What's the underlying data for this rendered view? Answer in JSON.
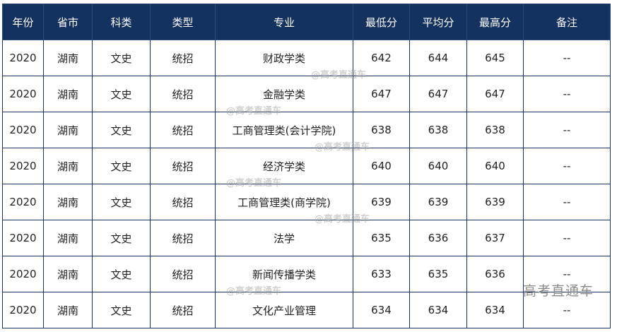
{
  "headers": [
    "年份",
    "省市",
    "科类",
    "类型",
    "专业",
    "最低分",
    "平均分",
    "最高分",
    "备注"
  ],
  "rows": [
    [
      "2020",
      "湖南",
      "文史",
      "统招",
      "财政学类",
      "642",
      "644",
      "645",
      "--"
    ],
    [
      "2020",
      "湖南",
      "文史",
      "统招",
      "金融学类",
      "647",
      "647",
      "647",
      "--"
    ],
    [
      "2020",
      "湖南",
      "文史",
      "统招",
      "工商管理类(会计学院)",
      "638",
      "638",
      "638",
      "--"
    ],
    [
      "2020",
      "湖南",
      "文史",
      "统招",
      "经济学类",
      "640",
      "640",
      "640",
      "--"
    ],
    [
      "2020",
      "湖南",
      "文史",
      "统招",
      "工商管理类(商学院)",
      "639",
      "639",
      "639",
      "--"
    ],
    [
      "2020",
      "湖南",
      "文史",
      "统招",
      "法学",
      "635",
      "636",
      "637",
      "--"
    ],
    [
      "2020",
      "湖南",
      "文史",
      "统招",
      "新闻传播学类",
      "633",
      "635",
      "636",
      "--"
    ],
    [
      "2020",
      "湖南",
      "文史",
      "统招",
      "文化产业管理",
      "634",
      "634",
      "634",
      "--"
    ]
  ],
  "watermark": "@高考直通车",
  "corner_watermark": "高考直通车",
  "colors": {
    "header_bg": "#14325f",
    "border": "#1a3360"
  }
}
